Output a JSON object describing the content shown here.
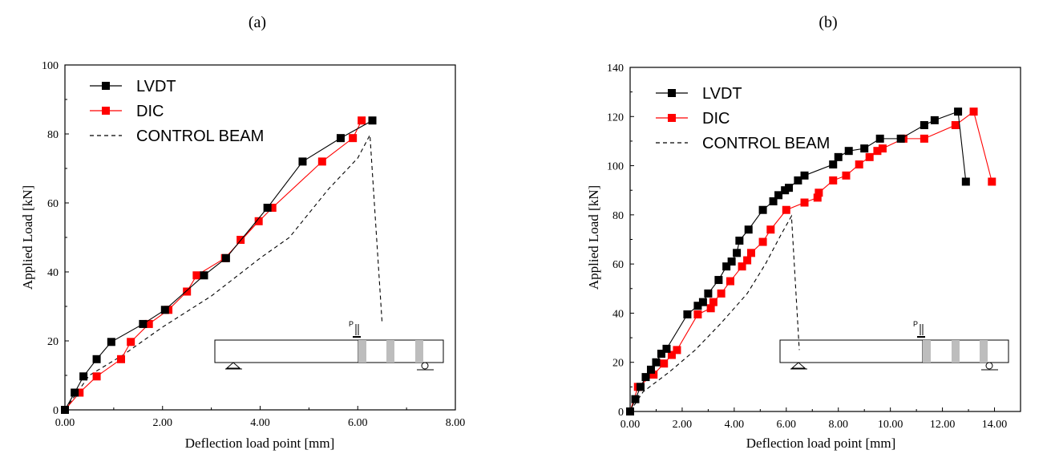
{
  "chart_data": [
    {
      "type": "line",
      "panel_label": "(a)",
      "xlabel": "Deflection load point [mm]",
      "ylabel": "Applied Load [kN]",
      "xlim": [
        0,
        8
      ],
      "ylim": [
        0,
        100
      ],
      "xticks": [
        0,
        2,
        4,
        6,
        8
      ],
      "xtick_labels": [
        "0.00",
        "2.00",
        "4.00",
        "6.00",
        "8.00"
      ],
      "yticks": [
        0,
        20,
        40,
        60,
        80,
        100
      ],
      "ytick_labels": [
        "0",
        "20",
        "40",
        "60",
        "80",
        "100"
      ],
      "legend": {
        "position": "top-left",
        "entries": [
          "LVDT",
          "DIC",
          "CONTROL BEAM"
        ]
      },
      "inset": {
        "description": "beam schematic",
        "load_label": "P"
      },
      "series": [
        {
          "name": "LVDT",
          "color": "#000000",
          "marker": "square",
          "style": "solid",
          "points": [
            [
              0.0,
              0.0
            ],
            [
              0.2,
              5.0
            ],
            [
              0.38,
              9.7
            ],
            [
              0.65,
              14.7
            ],
            [
              0.95,
              19.7
            ],
            [
              1.6,
              24.9
            ],
            [
              2.05,
              29.0
            ],
            [
              2.85,
              39.0
            ],
            [
              3.3,
              44.0
            ],
            [
              4.15,
              58.6
            ],
            [
              4.87,
              72.0
            ],
            [
              5.65,
              78.8
            ],
            [
              6.3,
              83.9
            ]
          ]
        },
        {
          "name": "DIC",
          "color": "#ff0000",
          "marker": "square",
          "style": "solid",
          "points": [
            [
              0.0,
              0.0
            ],
            [
              0.3,
              5.0
            ],
            [
              0.65,
              9.7
            ],
            [
              1.15,
              14.7
            ],
            [
              1.35,
              19.7
            ],
            [
              1.72,
              24.9
            ],
            [
              2.12,
              29.0
            ],
            [
              2.5,
              34.3
            ],
            [
              2.7,
              39.0
            ],
            [
              3.28,
              44.0
            ],
            [
              3.97,
              54.7
            ],
            [
              3.6,
              49.3
            ],
            [
              4.25,
              58.6
            ],
            [
              5.27,
              72.0
            ],
            [
              5.9,
              78.8
            ],
            [
              6.08,
              83.9
            ]
          ]
        },
        {
          "name": "CONTROL BEAM",
          "color": "#000000",
          "marker": "none",
          "style": "dashed",
          "points": [
            [
              0.0,
              0.0
            ],
            [
              0.5,
              10.0
            ],
            [
              1.2,
              16.0
            ],
            [
              2.0,
              24.0
            ],
            [
              3.0,
              33.0
            ],
            [
              4.0,
              44.0
            ],
            [
              4.6,
              50.0
            ],
            [
              5.4,
              64.0
            ],
            [
              6.0,
              73.0
            ],
            [
              6.25,
              79.7
            ],
            [
              6.5,
              25.0
            ]
          ]
        }
      ]
    },
    {
      "type": "line",
      "panel_label": "(b)",
      "xlabel": "Deflection load point [mm]",
      "ylabel": "Applied Load [kN]",
      "xlim": [
        0,
        15
      ],
      "ylim": [
        0,
        140
      ],
      "xticks": [
        0,
        2,
        4,
        6,
        8,
        10,
        12,
        14
      ],
      "xtick_labels": [
        "0.00",
        "2.00",
        "4.00",
        "6.00",
        "8.00",
        "10.00",
        "12.00",
        "14.00"
      ],
      "yticks": [
        0,
        20,
        40,
        60,
        80,
        100,
        120,
        140
      ],
      "ytick_labels": [
        "0",
        "20",
        "40",
        "60",
        "80",
        "100",
        "120",
        "140"
      ],
      "legend": {
        "position": "top-left",
        "entries": [
          "LVDT",
          "DIC",
          "CONTROL BEAM"
        ]
      },
      "inset": {
        "description": "beam schematic",
        "load_label": "P"
      },
      "series": [
        {
          "name": "LVDT",
          "color": "#000000",
          "marker": "square",
          "style": "solid",
          "points": [
            [
              0.0,
              0.0
            ],
            [
              0.2,
              5.0
            ],
            [
              0.4,
              10.0
            ],
            [
              0.6,
              14.0
            ],
            [
              0.8,
              17.0
            ],
            [
              1.0,
              20.0
            ],
            [
              1.2,
              23.5
            ],
            [
              1.4,
              25.5
            ],
            [
              2.2,
              39.5
            ],
            [
              2.6,
              43.0
            ],
            [
              2.8,
              44.5
            ],
            [
              3.0,
              48.0
            ],
            [
              3.4,
              53.5
            ],
            [
              3.7,
              59.0
            ],
            [
              3.9,
              61.0
            ],
            [
              4.1,
              64.5
            ],
            [
              4.2,
              69.5
            ],
            [
              4.55,
              74.0
            ],
            [
              5.1,
              82.0
            ],
            [
              5.5,
              85.5
            ],
            [
              5.7,
              88.0
            ],
            [
              5.95,
              90.0
            ],
            [
              6.1,
              91.0
            ],
            [
              6.45,
              94.0
            ],
            [
              6.7,
              96.0
            ],
            [
              7.8,
              100.5
            ],
            [
              8.0,
              103.5
            ],
            [
              8.4,
              106.0
            ],
            [
              9.0,
              107.0
            ],
            [
              9.6,
              111.0
            ],
            [
              10.4,
              111.0
            ],
            [
              11.3,
              116.5
            ],
            [
              11.7,
              118.5
            ],
            [
              12.6,
              122.0
            ],
            [
              12.9,
              93.5
            ]
          ]
        },
        {
          "name": "DIC",
          "color": "#ff0000",
          "marker": "square",
          "style": "solid",
          "points": [
            [
              0.0,
              0.0
            ],
            [
              0.3,
              10.0
            ],
            [
              0.9,
              15.0
            ],
            [
              1.3,
              19.5
            ],
            [
              1.6,
              23.0
            ],
            [
              1.8,
              25.0
            ],
            [
              2.6,
              39.5
            ],
            [
              3.1,
              42.0
            ],
            [
              3.2,
              44.5
            ],
            [
              3.5,
              48.0
            ],
            [
              3.85,
              53.0
            ],
            [
              4.3,
              59.0
            ],
            [
              4.5,
              61.5
            ],
            [
              4.65,
              64.5
            ],
            [
              5.1,
              69.0
            ],
            [
              5.4,
              74.0
            ],
            [
              6.0,
              82.0
            ],
            [
              6.7,
              85.0
            ],
            [
              7.2,
              87.0
            ],
            [
              7.25,
              89.0
            ],
            [
              7.8,
              94.0
            ],
            [
              8.3,
              96.0
            ],
            [
              8.8,
              100.5
            ],
            [
              9.2,
              103.5
            ],
            [
              9.5,
              106.0
            ],
            [
              9.7,
              107.0
            ],
            [
              10.5,
              111.0
            ],
            [
              11.3,
              111.0
            ],
            [
              12.5,
              116.5
            ],
            [
              13.2,
              122.0
            ],
            [
              13.9,
              93.5
            ]
          ]
        },
        {
          "name": "CONTROL BEAM",
          "color": "#000000",
          "marker": "none",
          "style": "dashed",
          "points": [
            [
              0.0,
              0.0
            ],
            [
              0.5,
              8.0
            ],
            [
              1.5,
              16.0
            ],
            [
              2.5,
              25.0
            ],
            [
              3.5,
              36.0
            ],
            [
              4.5,
              48.0
            ],
            [
              5.2,
              60.0
            ],
            [
              5.8,
              72.0
            ],
            [
              6.2,
              79.5
            ],
            [
              6.5,
              25.0
            ]
          ]
        }
      ]
    }
  ]
}
